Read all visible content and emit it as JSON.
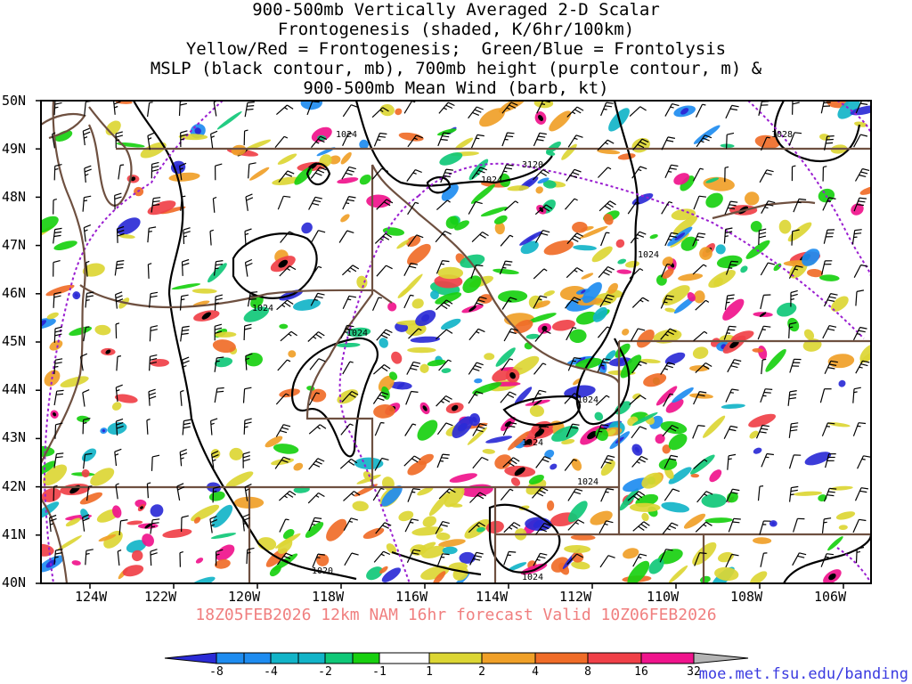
{
  "title_lines": [
    "900-500mb Vertically Averaged 2-D Scalar",
    "Frontogenesis (shaded, K/6hr/100km)",
    "Yellow/Red = Frontogenesis;  Green/Blue = Frontolysis",
    "MSLP (black contour, mb), 700mb height (purple contour, m) &",
    "900-500mb Mean Wind (barb, kt)"
  ],
  "lat_labels": [
    "50N",
    "49N",
    "48N",
    "47N",
    "46N",
    "45N",
    "44N",
    "43N",
    "42N",
    "41N",
    "40N"
  ],
  "lon_labels": [
    "124W",
    "122W",
    "120W",
    "118W",
    "116W",
    "114W",
    "112W",
    "110W",
    "108W",
    "106W"
  ],
  "valid_text": "18Z05FEB2026 12km NAM 16hr forecast Valid 10Z06FEB2026",
  "credit": "moe.met.fsu.edu/banding",
  "colorbar": {
    "labels": [
      "-8",
      "-4",
      "-2",
      "-1",
      "1",
      "2",
      "4",
      "8",
      "16",
      "32"
    ],
    "colors": [
      "#2b2bd6",
      "#1e8cf0",
      "#12b4c8",
      "#10c878",
      "#18d010",
      "#ffffff",
      "#dcd634",
      "#f0a028",
      "#f06c28",
      "#f04048",
      "#f0148c",
      "#000000",
      "#b4b4b4"
    ]
  },
  "contour_labels": {
    "mslp": [
      "1024",
      "1024",
      "1024",
      "1024",
      "1024",
      "1024",
      "1024",
      "1024",
      "1024",
      "1028",
      "1020",
      "1024"
    ],
    "height": [
      "3120"
    ]
  },
  "map_colors": {
    "mslp": "#000000",
    "height": "#9a1ed0",
    "borders": "#6e5040",
    "barbs": "#000000"
  }
}
